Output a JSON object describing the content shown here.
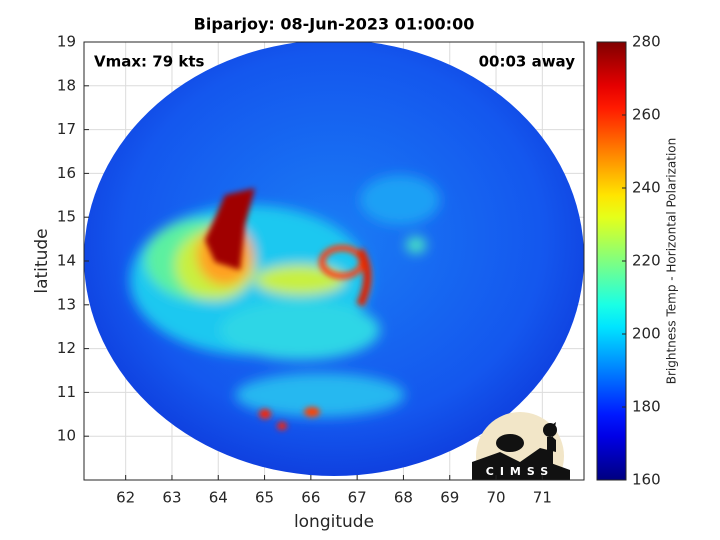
{
  "chart_data": {
    "type": "image",
    "title": "Biparjoy: 08-Jun-2023 01:00:00",
    "annotations": [
      "Vmax: 79 kts",
      "00:03 away"
    ],
    "x_label": "longitude",
    "y_label": "latitude",
    "xlim": [
      61.1,
      71.9
    ],
    "xticks": [
      62,
      63,
      64,
      65,
      66,
      67,
      68,
      69,
      70,
      71
    ],
    "ylim": [
      9,
      19
    ],
    "yticks": [
      10,
      11,
      12,
      13,
      14,
      15,
      16,
      17,
      18,
      19
    ],
    "grid": true,
    "colormap": "jet",
    "clim": [
      160,
      280
    ],
    "cticks": [
      160,
      180,
      200,
      220,
      240,
      260,
      280
    ],
    "colorbar_label": "Brightness Temp - Horizontal Polarization",
    "logo_text": "CIMSS"
  }
}
